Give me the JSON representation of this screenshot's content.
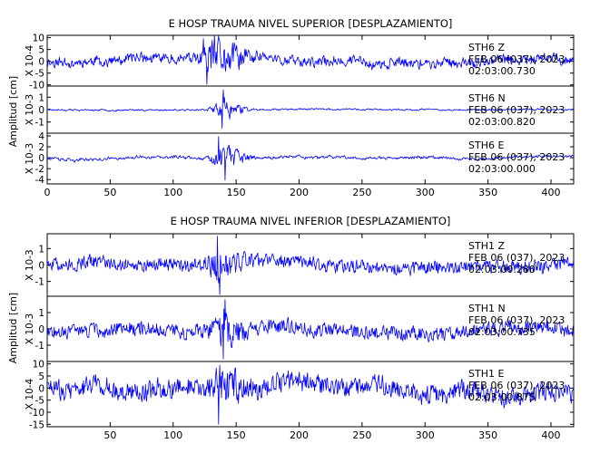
{
  "chart_data": [
    {
      "type": "line",
      "title": "E HOSP TRAUMA NIVEL SUPERIOR [DESPLAZAMIENTO]",
      "ylabel": "Amplitud [cm]",
      "xlim": [
        0,
        418
      ],
      "xticks": [
        0,
        50,
        100,
        150,
        200,
        250,
        300,
        350,
        400
      ],
      "line_color": "#0000ff",
      "panels": [
        {
          "multiplier": "X 10-4",
          "ylim": [
            -10.5,
            11
          ],
          "yticks": [
            10,
            5,
            0,
            -5,
            -10
          ],
          "station": "STH6 Z",
          "date": "FEB 06 (037), 2023",
          "time": "02:03:00.730",
          "series": {
            "seed": 11,
            "base": 2.2,
            "drift": 1.6,
            "burst": 7.5,
            "burst_start": 118,
            "burst_peak": 132,
            "burst_end": 175,
            "smooth": 0.35,
            "events": [
              {
                "x": 124,
                "y": 9.6
              },
              {
                "x": 127,
                "y": -9.8
              }
            ]
          }
        },
        {
          "multiplier": "X 10-3",
          "ylim": [
            -1.9,
            1.9
          ],
          "yticks": [
            1,
            0,
            -1
          ],
          "station": "STH6 N",
          "date": "FEB 06 (037), 2023",
          "time": "02:03:00.820",
          "series": {
            "seed": 23,
            "base": 0.07,
            "drift": 0.04,
            "burst": 0.9,
            "burst_start": 125,
            "burst_peak": 140,
            "burst_end": 165,
            "smooth": 0.45,
            "events": [
              {
                "x": 140,
                "y": 1.6
              },
              {
                "x": 139,
                "y": -1.5
              }
            ]
          }
        },
        {
          "multiplier": "X 10-3",
          "ylim": [
            -4.8,
            4.5
          ],
          "yticks": [
            4,
            2,
            0,
            -2,
            -4
          ],
          "station": "STH6 E",
          "date": "FEB 06 (037), 2023",
          "time": "02:03:00.000",
          "series": {
            "seed": 37,
            "base": 0.3,
            "drift": 0.3,
            "burst": 2.6,
            "burst_start": 125,
            "burst_peak": 140,
            "burst_end": 168,
            "smooth": 0.45,
            "events": [
              {
                "x": 136,
                "y": 3.9
              },
              {
                "x": 141,
                "y": -4.1
              }
            ]
          }
        }
      ]
    },
    {
      "type": "line",
      "title": "E HOSP TRAUMA NIVEL INFERIOR [DESPLAZAMIENTO]",
      "ylabel": "Amplitud [cm]",
      "xlim": [
        0,
        418
      ],
      "xticks": [
        50,
        100,
        150,
        200,
        250,
        300,
        350,
        400
      ],
      "line_color": "#0000ff",
      "panels": [
        {
          "multiplier": "X 10-3",
          "ylim": [
            -1.9,
            1.9
          ],
          "yticks": [
            1,
            0,
            -1
          ],
          "station": "STH1 Z",
          "date": "FEB 06 (037), 2023",
          "time": "02:03:00.280",
          "series": {
            "seed": 51,
            "base": 0.42,
            "drift": 0.25,
            "burst": 0.8,
            "burst_start": 120,
            "burst_peak": 137,
            "burst_end": 165,
            "smooth": 0.3,
            "events": [
              {
                "x": 135,
                "y": 1.75
              },
              {
                "x": 137,
                "y": -1.8
              }
            ]
          }
        },
        {
          "multiplier": "X 10-3",
          "ylim": [
            -2.0,
            2.0
          ],
          "yticks": [
            1,
            0,
            -1
          ],
          "station": "STH1 N",
          "date": "FEB 06 (037), 2023",
          "time": "02:03:00.735",
          "series": {
            "seed": 67,
            "base": 0.45,
            "drift": 0.22,
            "burst": 0.8,
            "burst_start": 125,
            "burst_peak": 140,
            "burst_end": 165,
            "smooth": 0.3,
            "events": [
              {
                "x": 141,
                "y": 1.8
              },
              {
                "x": 140,
                "y": -1.85
              }
            ]
          }
        },
        {
          "multiplier": "X 10-4",
          "ylim": [
            -16,
            11
          ],
          "yticks": [
            10,
            5,
            0,
            -5,
            -10,
            -15
          ],
          "station": "STH1 E",
          "date": "FEB 06 (037), 2023",
          "time": "02:03:00.875",
          "series": {
            "seed": 83,
            "base": 4.2,
            "drift": 2.5,
            "burst": 5.0,
            "burst_start": 125,
            "burst_peak": 140,
            "burst_end": 170,
            "smooth": 0.3,
            "events": [
              {
                "x": 137,
                "y": 9.5
              },
              {
                "x": 136,
                "y": -15.0
              }
            ]
          }
        }
      ]
    }
  ]
}
